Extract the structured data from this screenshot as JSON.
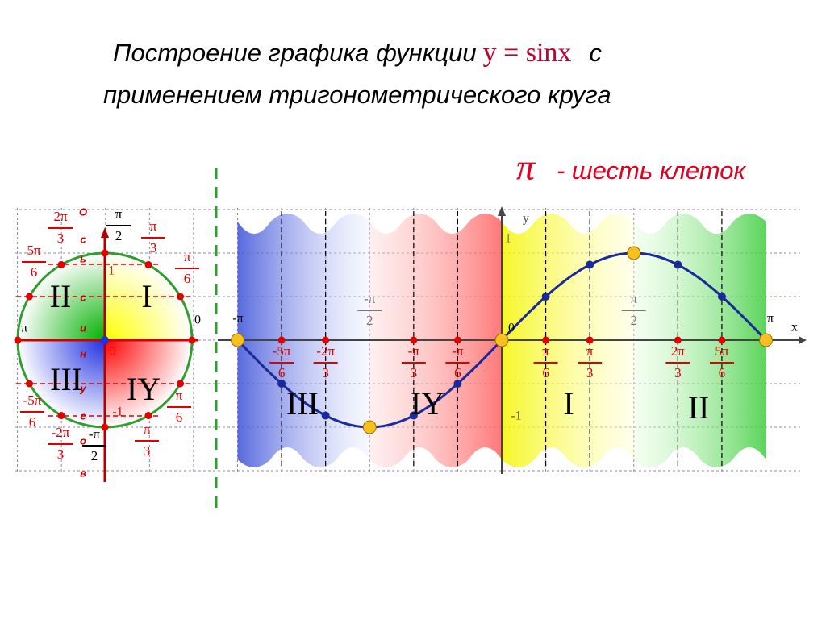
{
  "title": {
    "line1": "Построение графика функции",
    "formula": "y = sinx",
    "tail": "с",
    "line2": "применением тригонометрического круга"
  },
  "note": {
    "symbol": "π",
    "text": "- шесть клеток"
  },
  "circle": {
    "quadrants": [
      "II",
      "I",
      "III",
      "IY"
    ],
    "axis_word": [
      "О",
      "с",
      "ь",
      "с",
      "и",
      "н",
      "у",
      "с",
      "о",
      "в"
    ],
    "fractions": [
      {
        "num": "2π",
        "den": "3"
      },
      {
        "num": "π",
        "den": "2"
      },
      {
        "num": "π",
        "den": "3"
      },
      {
        "num": "5π",
        "den": "6"
      },
      {
        "num": "π",
        "den": "6"
      },
      {
        "num": "-5π",
        "den": "6"
      },
      {
        "num": "π",
        "den": "6"
      },
      {
        "num": "-2π",
        "den": "3"
      },
      {
        "num": "-π",
        "den": "2"
      },
      {
        "num": "π",
        "den": "3"
      }
    ],
    "marks": [
      "π",
      "0",
      "1",
      "-1",
      "0"
    ]
  },
  "graph": {
    "quadrants": [
      "III",
      "IY",
      "I",
      "II"
    ],
    "fractions": [
      {
        "num": "-5π",
        "den": "6"
      },
      {
        "num": "-2π",
        "den": "3"
      },
      {
        "num": "-π",
        "den": "3"
      },
      {
        "num": "-π",
        "den": "6"
      },
      {
        "num": "π",
        "den": "6"
      },
      {
        "num": "π",
        "den": "3"
      },
      {
        "num": "2π",
        "den": "3"
      },
      {
        "num": "5π",
        "den": "6"
      }
    ],
    "half": [
      {
        "num": "-π",
        "den": "2"
      },
      {
        "num": "π",
        "den": "2"
      }
    ],
    "marks": [
      "-π",
      "0",
      "π",
      "x",
      "y",
      "1",
      "-1"
    ]
  }
}
